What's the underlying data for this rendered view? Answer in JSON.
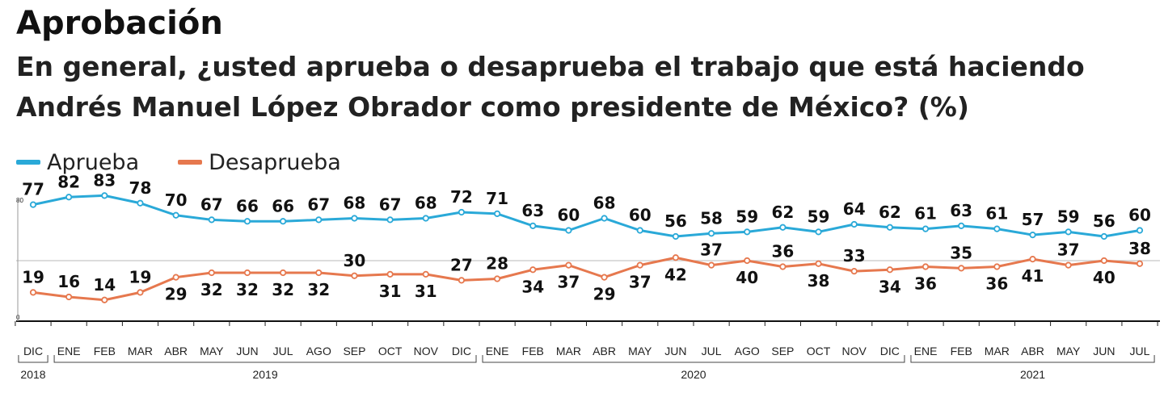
{
  "chart_data": {
    "type": "line",
    "title": "Aprobación",
    "subtitle": "En general, ¿usted aprueba o desaprueba el trabajo que está haciendo Andrés Manuel López Obrador como presidente de México?  (%)",
    "ylim": [
      0,
      80
    ],
    "y_axis_labels": [
      "80",
      "0"
    ],
    "legend_placement": "top-left",
    "x": [
      "DIC",
      "ENE",
      "FEB",
      "MAR",
      "ABR",
      "MAY",
      "JUN",
      "JUL",
      "AGO",
      "SEP",
      "OCT",
      "NOV",
      "DIC",
      "ENE",
      "FEB",
      "MAR",
      "ABR",
      "MAY",
      "JUN",
      "JUL",
      "AGO",
      "SEP",
      "OCT",
      "NOV",
      "DIC",
      "ENE",
      "FEB",
      "MAR",
      "ABR",
      "MAY",
      "JUN",
      "JUL"
    ],
    "years": [
      {
        "label": "2018",
        "from": 0,
        "to": 0
      },
      {
        "label": "2019",
        "from": 1,
        "to": 12
      },
      {
        "label": "2020",
        "from": 13,
        "to": 24
      },
      {
        "label": "2021",
        "from": 25,
        "to": 31
      }
    ],
    "series": [
      {
        "name": "Aprueba",
        "color": "#2aa9d8",
        "values": [
          77,
          82,
          83,
          78,
          70,
          67,
          66,
          66,
          67,
          68,
          67,
          68,
          72,
          71,
          63,
          60,
          68,
          60,
          56,
          58,
          59,
          62,
          59,
          64,
          62,
          61,
          63,
          61,
          57,
          59,
          56,
          60
        ]
      },
      {
        "name": "Desaprueba",
        "color": "#e6784e",
        "values": [
          19,
          16,
          14,
          19,
          29,
          32,
          32,
          32,
          32,
          30,
          31,
          31,
          27,
          28,
          34,
          37,
          29,
          37,
          42,
          37,
          40,
          36,
          38,
          33,
          34,
          36,
          35,
          36,
          41,
          37,
          40,
          38
        ]
      }
    ]
  }
}
